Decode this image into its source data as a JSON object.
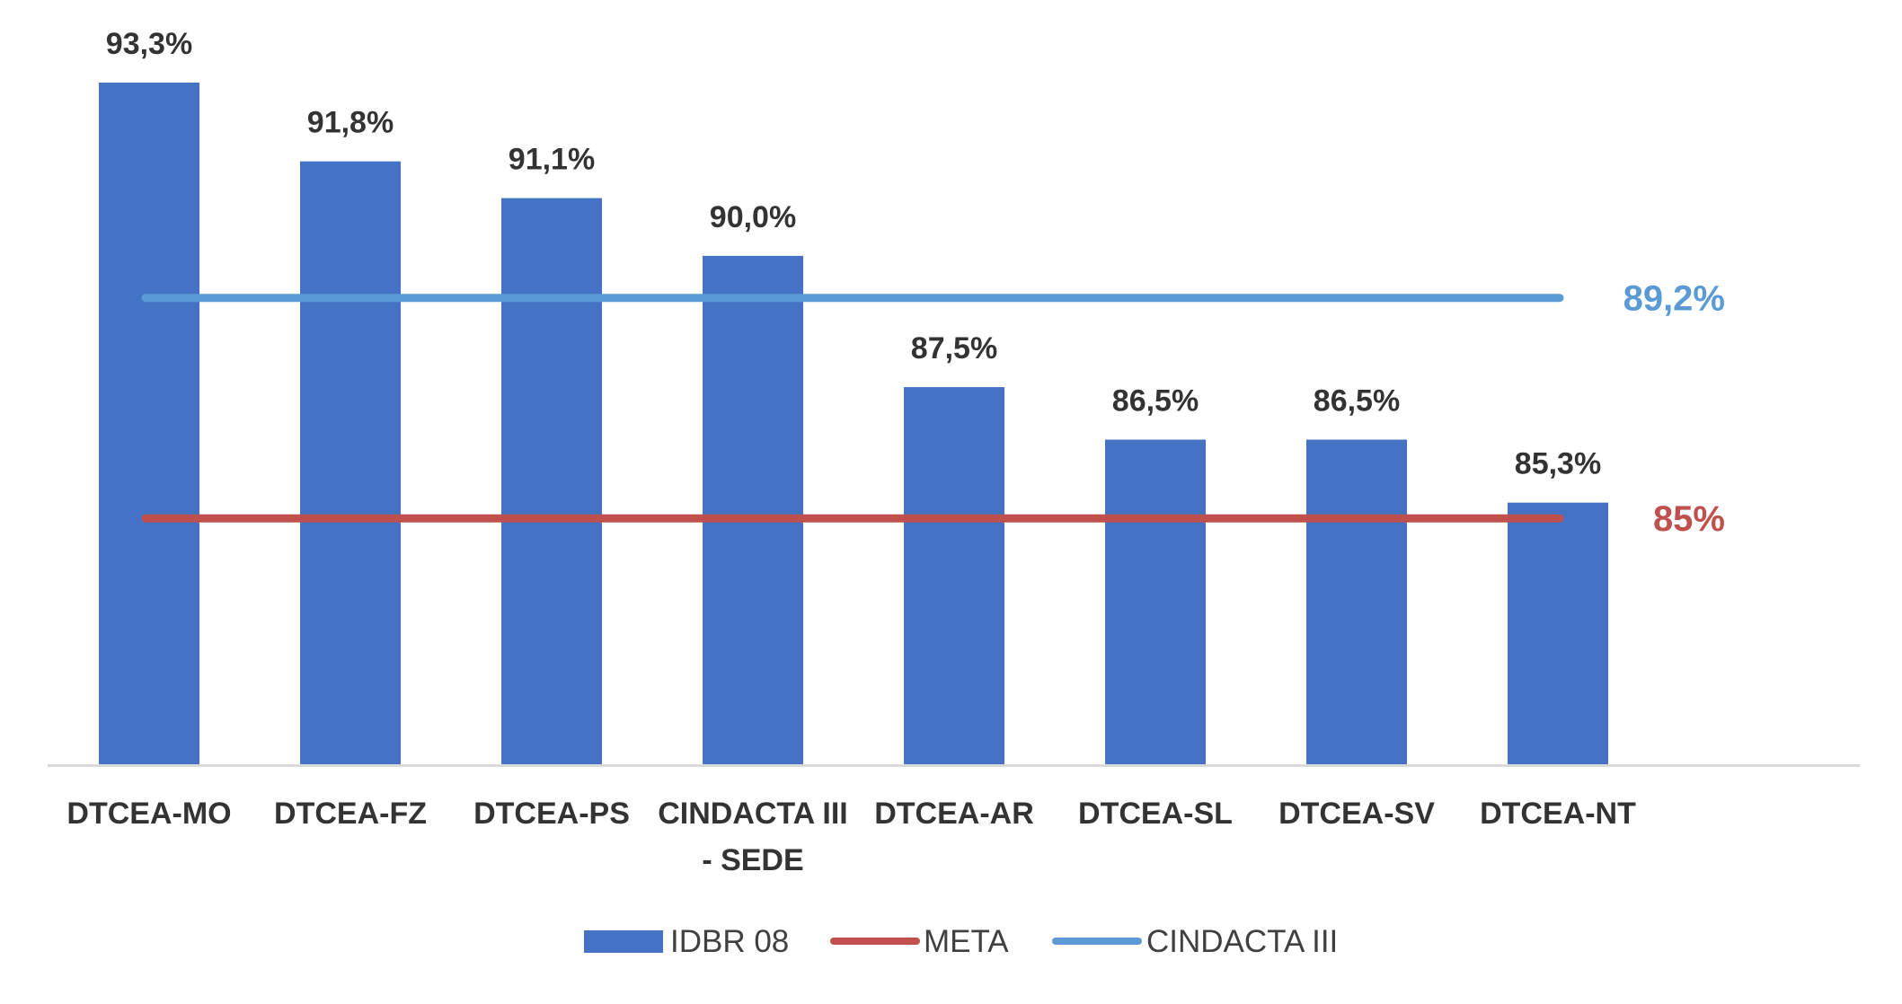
{
  "chart_data": {
    "type": "bar",
    "categories": [
      [
        "DTCEA-MO"
      ],
      [
        "DTCEA-FZ"
      ],
      [
        "DTCEA-PS"
      ],
      [
        "CINDACTA III",
        "- SEDE"
      ],
      [
        "DTCEA-AR"
      ],
      [
        "DTCEA-SL"
      ],
      [
        "DTCEA-SV"
      ],
      [
        "DTCEA-NT"
      ]
    ],
    "series": [
      {
        "name": "IDBR 08",
        "type": "bar",
        "color": "#4472C4",
        "values": [
          93.3,
          91.8,
          91.1,
          90.0,
          87.5,
          86.5,
          86.5,
          85.3
        ],
        "labels": [
          "93,3%",
          "91,8%",
          "91,1%",
          "90,0%",
          "87,5%",
          "86,5%",
          "86,5%",
          "85,3%"
        ]
      },
      {
        "name": "META",
        "type": "line",
        "color": "#C0504D",
        "value": 85,
        "label": "85%"
      },
      {
        "name": "CINDACTA III",
        "type": "line",
        "color": "#5B9BD5",
        "value": 89.2,
        "label": "89,2%"
      }
    ],
    "ylim": [
      80.3,
      93.3
    ],
    "grid": false,
    "legend_position": "bottom"
  }
}
